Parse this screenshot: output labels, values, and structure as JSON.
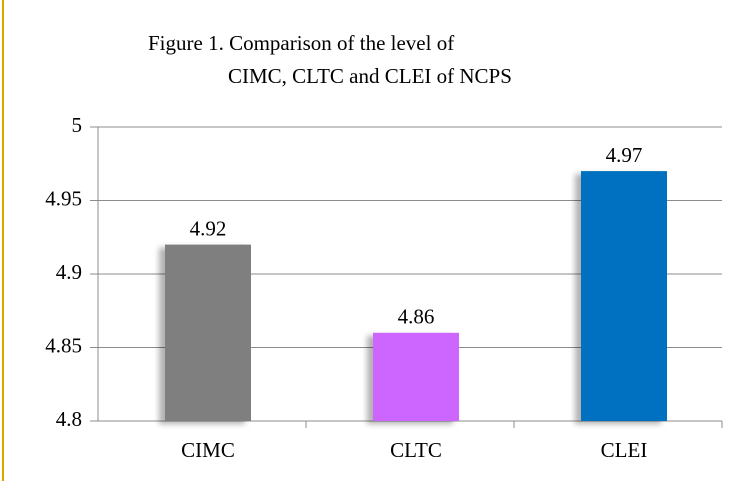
{
  "chart_data": {
    "type": "bar",
    "title": [
      "Figure 1. Comparison of the level of",
      "CIMC, CLTC and CLEI of NCPS"
    ],
    "categories": [
      "CIMC",
      "CLTC",
      "CLEI"
    ],
    "values": [
      4.92,
      4.86,
      4.97
    ],
    "colors": [
      "#7f7f7f",
      "#cc66ff",
      "#0070c0"
    ],
    "ylim": [
      4.8,
      5
    ],
    "yticks": [
      4.8,
      4.85,
      4.9,
      4.95,
      5
    ],
    "grid": true
  }
}
